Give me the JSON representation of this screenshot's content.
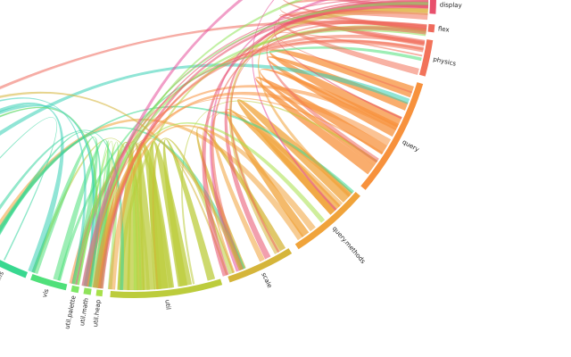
{
  "nodes": [
    {
      "label": "display"
    },
    {
      "label": "flex"
    },
    {
      "label": "physics"
    },
    {
      "label": "query"
    },
    {
      "label": "query.methods"
    },
    {
      "label": "scale"
    },
    {
      "label": "util"
    },
    {
      "label": "util.heap"
    },
    {
      "label": "util.math"
    },
    {
      "label": "util.palette"
    },
    {
      "label": "vis"
    },
    {
      "label": "vis.axis"
    }
  ]
}
